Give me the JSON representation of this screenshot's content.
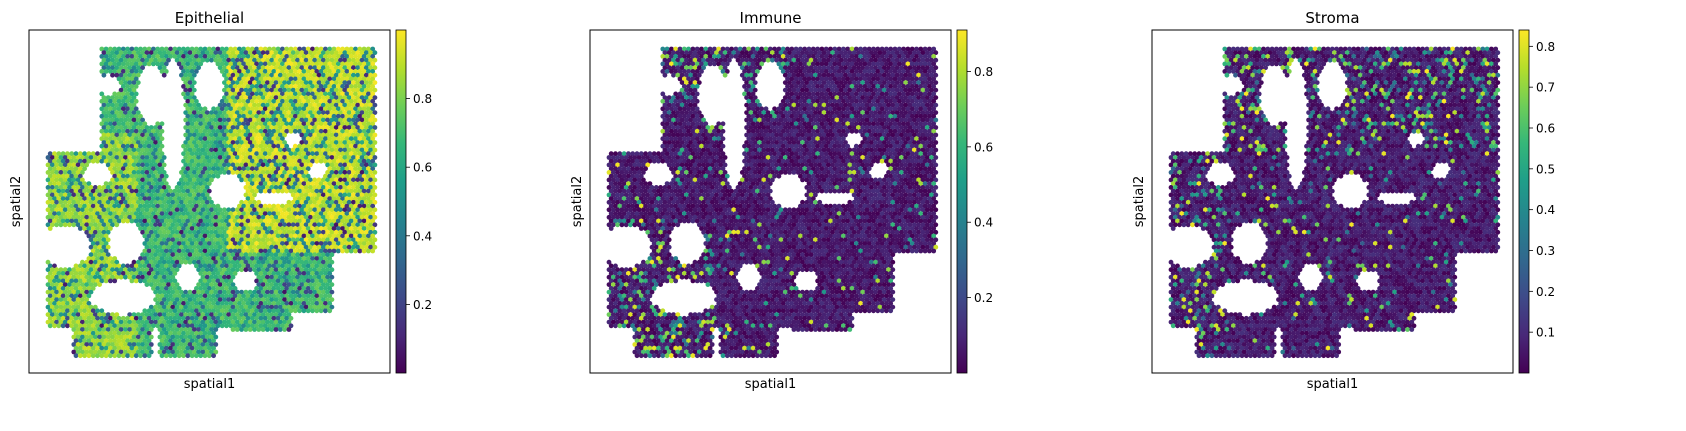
{
  "figure": {
    "colormap": "viridis",
    "colormap_stops": [
      "#440154",
      "#482878",
      "#3e4a89",
      "#31688e",
      "#26828e",
      "#1f9e89",
      "#35b779",
      "#6ece58",
      "#b5de2b",
      "#fde725"
    ]
  },
  "chart_data": [
    {
      "type": "scatter",
      "title": "Epithelial",
      "xlabel": "spatial1",
      "ylabel": "spatial2",
      "colorbar": {
        "vmin": 0.0,
        "vmax": 1.0,
        "ticks": [
          "0.2",
          "0.4",
          "0.6",
          "0.8"
        ],
        "tick_values": [
          0.2,
          0.4,
          0.6,
          0.8
        ]
      }
    },
    {
      "type": "scatter",
      "title": "Immune",
      "xlabel": "spatial1",
      "ylabel": "spatial2",
      "colorbar": {
        "vmin": 0.0,
        "vmax": 0.91,
        "ticks": [
          "0.2",
          "0.4",
          "0.6",
          "0.8"
        ],
        "tick_values": [
          0.2,
          0.4,
          0.6,
          0.8
        ]
      }
    },
    {
      "type": "scatter",
      "title": "Stroma",
      "xlabel": "spatial1",
      "ylabel": "spatial2",
      "colorbar": {
        "vmin": 0.0,
        "vmax": 0.84,
        "ticks": [
          "0.1",
          "0.2",
          "0.3",
          "0.4",
          "0.5",
          "0.6",
          "0.7",
          "0.8"
        ],
        "tick_values": [
          0.1,
          0.2,
          0.3,
          0.4,
          0.5,
          0.6,
          0.7,
          0.8
        ]
      }
    }
  ]
}
